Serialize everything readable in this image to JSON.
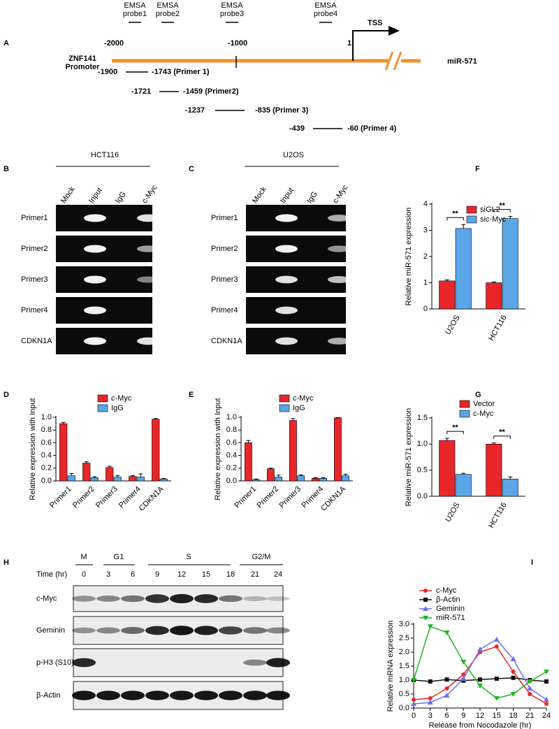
{
  "panel_labels": [
    "A",
    "B",
    "C",
    "D",
    "E",
    "F",
    "G",
    "H",
    "I"
  ],
  "panel_a": {
    "probes": [
      [
        "EMSA",
        "probe1"
      ],
      [
        "EMSA",
        "probe2"
      ],
      [
        "EMSA",
        "probe3"
      ],
      [
        "EMSA",
        "probe4"
      ]
    ],
    "positions": [
      "-2000",
      "-1000",
      "1"
    ],
    "tss": "TSS",
    "promoter": [
      "ZNF141",
      "Promoter"
    ],
    "gene": "miR-571",
    "primers": [
      {
        "start": "-1900",
        "end": "-1743 (Primer 1)"
      },
      {
        "start": "-1721",
        "end": "-1459 (Primer2)"
      },
      {
        "start": "-1237",
        "end": "-835 (Primer 3)"
      },
      {
        "start": "-439",
        "end": "-60 (Primer 4)"
      }
    ]
  },
  "gels": [
    {
      "cell_line": "HCT116",
      "lanes": [
        "Mock",
        "Input",
        "IgG",
        "c-Myc"
      ],
      "rows": [
        "Primer1",
        "Primer2",
        "Primer3",
        "Primer4",
        "CDKN1A"
      ]
    },
    {
      "cell_line": "U2OS",
      "lanes": [
        "Mock",
        "Input",
        "IgG",
        "c-Myc"
      ],
      "rows": [
        "Primer1",
        "Primer2",
        "Primer3",
        "Primer4",
        "CDKN1A"
      ]
    }
  ],
  "blot": {
    "phases": [
      "M",
      "G1",
      "S",
      "G2/M"
    ],
    "time_label": "Time (hr)",
    "times": [
      "0",
      "3",
      "6",
      "9",
      "12",
      "15",
      "18",
      "21",
      "24"
    ],
    "rows": [
      "c-Myc",
      "Geminin",
      "p-H3 (S10)",
      "β-Actin"
    ]
  },
  "chart_data": [
    {
      "type": "bar",
      "ylabel": "Relative expression with Input",
      "categories": [
        "Primer1",
        "Primer2",
        "Primer3",
        "Primer4",
        "CDKN1A"
      ],
      "series": [
        {
          "name": "c-Myc",
          "color": "#e8262a",
          "values": [
            0.9,
            0.28,
            0.21,
            0.07,
            0.97
          ],
          "errors": [
            0.02,
            0.02,
            0.02,
            0.015,
            0.01
          ]
        },
        {
          "name": "IgG",
          "color": "#5aa6e6",
          "values": [
            0.08,
            0.05,
            0.06,
            0.06,
            0.03
          ],
          "errors": [
            0.035,
            0.015,
            0.025,
            0.05,
            0.01
          ]
        }
      ],
      "ylim": [
        0,
        1.0
      ],
      "yticks": [
        {
          "value": 0,
          "label": "0.0"
        },
        0.2,
        0.4,
        0.6,
        0.8,
        {
          "value": 1,
          "label": "1.0"
        }
      ]
    },
    {
      "type": "bar",
      "ylabel": "Relative expression with Input",
      "categories": [
        "Primer1",
        "Primer2",
        "Primer3",
        "Primer4",
        "CDKN1A"
      ],
      "series": [
        {
          "name": "c-Myc",
          "color": "#e8262a",
          "values": [
            0.6,
            0.19,
            0.95,
            0.04,
            0.99
          ],
          "errors": [
            0.035,
            0.01,
            0.03,
            0.01,
            0.005
          ]
        },
        {
          "name": "IgG",
          "color": "#5aa6e6",
          "values": [
            0.02,
            0.06,
            0.08,
            0.04,
            0.08
          ],
          "errors": [
            0.01,
            0.03,
            0.015,
            0.01,
            0.025
          ]
        }
      ],
      "ylim": [
        0,
        1.0
      ],
      "yticks": [
        {
          "value": 0,
          "label": "0.0"
        },
        0.2,
        0.4,
        0.6,
        0.8,
        {
          "value": 1,
          "label": "1.0"
        }
      ]
    },
    {
      "type": "bar",
      "ylabel": "Relative miR-571 expression",
      "categories": [
        "U2OS",
        "HCT116"
      ],
      "series": [
        {
          "name": "siGL2",
          "color": "#e8262a",
          "values": [
            1.07,
            1.0
          ],
          "errors": [
            0.04,
            0.03
          ]
        },
        {
          "name": "sic-Myc",
          "color": "#5aa6e6",
          "values": [
            3.07,
            3.45
          ],
          "errors": [
            0.15,
            0.08
          ]
        }
      ],
      "annotations": [
        "**",
        "**"
      ],
      "ylim": [
        0,
        4
      ],
      "yticks": [
        0,
        1,
        2,
        3,
        4
      ]
    },
    {
      "type": "bar",
      "ylabel": "Relative miR-571 expression",
      "categories": [
        "U2OS",
        "HCT116"
      ],
      "series": [
        {
          "name": "Vector",
          "color": "#e8262a",
          "values": [
            1.07,
            1.0
          ],
          "errors": [
            0.04,
            0.02
          ]
        },
        {
          "name": "c-Myc",
          "color": "#5aa6e6",
          "values": [
            0.42,
            0.33
          ],
          "errors": [
            0.02,
            0.04
          ]
        }
      ],
      "annotations": [
        "**",
        "**"
      ],
      "ylim": [
        0,
        1.5
      ],
      "yticks": [
        {
          "value": 0,
          "label": "0.0"
        },
        0.5,
        {
          "value": 1,
          "label": "1.0"
        },
        1.5
      ]
    },
    {
      "type": "line",
      "xlabel": "Release from Nocodazole (hr)",
      "ylabel": "Relative mRNA expression",
      "x": [
        0,
        3,
        6,
        9,
        12,
        15,
        18,
        21,
        24
      ],
      "series": [
        {
          "name": "c-Myc",
          "color": "#e8262a",
          "marker": "circle",
          "values": [
            0.3,
            0.35,
            0.7,
            1.2,
            2.0,
            2.2,
            1.3,
            0.5,
            0.15
          ]
        },
        {
          "name": "β-Actin",
          "color": "#111111",
          "marker": "square",
          "values": [
            1.0,
            0.95,
            1.02,
            0.98,
            1.02,
            1.05,
            1.08,
            1.0,
            0.95
          ]
        },
        {
          "name": "Geminin",
          "color": "#6f6fe8",
          "marker": "triangle",
          "values": [
            0.15,
            0.2,
            0.45,
            1.05,
            2.1,
            2.45,
            1.75,
            0.7,
            0.3
          ]
        },
        {
          "name": "miR-571",
          "color": "#22b422",
          "marker": "triangle-down",
          "values": [
            1.0,
            2.92,
            2.7,
            1.65,
            0.8,
            0.35,
            0.5,
            0.95,
            1.3
          ]
        }
      ],
      "xlim": [
        0,
        24
      ],
      "xticks": [
        0,
        3,
        6,
        9,
        12,
        15,
        18,
        21,
        24
      ],
      "ylim": [
        0,
        3.0
      ],
      "yticks": [
        {
          "value": 0,
          "label": "0.0"
        },
        0.5,
        {
          "value": 1,
          "label": "1.0"
        },
        1.5,
        {
          "value": 2,
          "label": "2.0"
        },
        2.5,
        {
          "value": 3,
          "label": "3.0"
        }
      ]
    }
  ]
}
